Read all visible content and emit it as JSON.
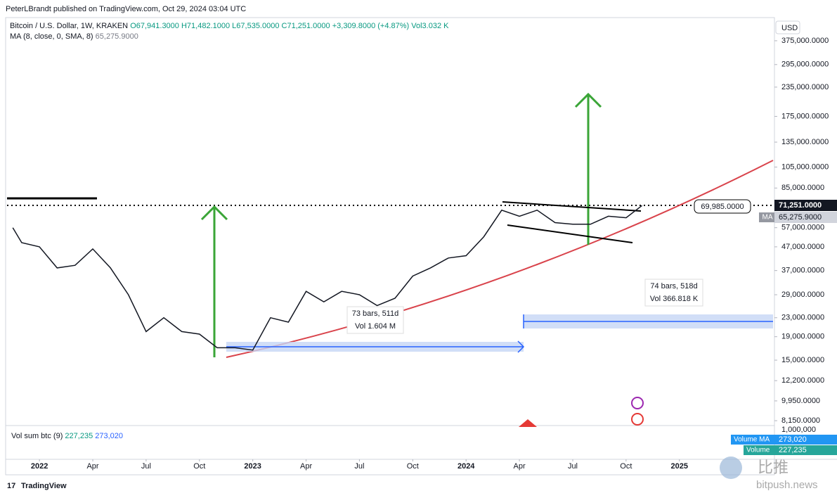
{
  "header": {
    "publisher": "PeterLBrandt published on TradingView.com, Oct 29, 2024 03:04 UTC"
  },
  "legend": {
    "symbol": "Bitcoin / U.S. Dollar, 1W, KRAKEN",
    "open": "O67,941.3000",
    "high": "H71,482.1000",
    "low": "L67,535.0000",
    "close": "C71,251.0000",
    "change": "+3,309.8000 (+4.87%)",
    "volume": "Vol3.032 K",
    "ma_label": "MA (8, close, 0, SMA, 8)",
    "ma_value": "65,275.9000"
  },
  "currency": "USD",
  "chart_data": {
    "type": "line",
    "log_scale": true,
    "grid": false,
    "color": "#131722",
    "series": [
      {
        "name": "Bitcoin / U.S. Dollar",
        "color": "#131722",
        "x": [
          2021.875,
          2021.917,
          2022.0,
          2022.083,
          2022.167,
          2022.25,
          2022.333,
          2022.417,
          2022.5,
          2022.583,
          2022.667,
          2022.75,
          2022.833,
          2022.917,
          2023.0,
          2023.083,
          2023.167,
          2023.25,
          2023.333,
          2023.417,
          2023.5,
          2023.583,
          2023.667,
          2023.75,
          2023.833,
          2023.917,
          2024.0,
          2024.083,
          2024.167,
          2024.25,
          2024.333,
          2024.417,
          2024.5,
          2024.583,
          2024.667,
          2024.75,
          2024.825
        ],
        "values": [
          57000,
          49000,
          47000,
          38000,
          39000,
          46000,
          38000,
          29000,
          20000,
          23000,
          20000,
          19500,
          17000,
          17000,
          16600,
          23000,
          22000,
          30000,
          27000,
          30000,
          29000,
          26000,
          28000,
          35000,
          38000,
          42000,
          43000,
          52000,
          68000,
          64000,
          68000,
          60000,
          59000,
          59000,
          64000,
          63000,
          71251
        ]
      }
    ],
    "xlim": [
      2021.848,
      2025.439
    ],
    "xticks": [
      2022,
      {
        "value": 2022.25,
        "label": "Apr"
      },
      {
        "value": 2022.5,
        "label": "Jul"
      },
      {
        "value": 2022.75,
        "label": "Oct"
      },
      2023,
      {
        "value": 2023.25,
        "label": "Apr"
      },
      {
        "value": 2023.5,
        "label": "Jul"
      },
      {
        "value": 2023.75,
        "label": "Oct"
      },
      2024,
      {
        "value": 2024.25,
        "label": "Apr"
      },
      {
        "value": 2024.5,
        "label": "Jul"
      },
      {
        "value": 2024.75,
        "label": "Oct"
      },
      2025
    ],
    "ylim": [
      7760,
      411000
    ],
    "yticks": [
      {
        "value": 375000,
        "label": "375,000.0000"
      },
      {
        "value": 295000,
        "label": "295,000.0000"
      },
      {
        "value": 235000,
        "label": "235,000.0000"
      },
      {
        "value": 175000,
        "label": "175,000.0000"
      },
      {
        "value": 135000,
        "label": "135,000.0000"
      },
      {
        "value": 105000,
        "label": "105,000.0000"
      },
      {
        "value": 85000,
        "label": "85,000.0000"
      },
      {
        "value": 57000,
        "label": "57,000.0000"
      },
      {
        "value": 47000,
        "label": "47,000.0000"
      },
      {
        "value": 37000,
        "label": "37,000.0000"
      },
      {
        "value": 29000,
        "label": "29,000.0000"
      },
      {
        "value": 23000,
        "label": "23,000.0000"
      },
      {
        "value": 19000,
        "label": "19,000.0000"
      },
      {
        "value": 15000,
        "label": "15,000.0000"
      },
      {
        "value": 12200,
        "label": "12,200.0000"
      },
      {
        "value": 9950,
        "label": "9,950.0000"
      },
      {
        "value": 8150,
        "label": "8,150.0000"
      }
    ]
  },
  "price_tags": {
    "last": "71,251.0000",
    "ma": "65,275.9000",
    "ma_badge": "MA",
    "level": "69,985.0000"
  },
  "annotations": [
    {
      "bars": "73 bars, 511d",
      "vol": "Vol 1.604 M"
    },
    {
      "bars": "74 bars, 518d",
      "vol": "Vol 366.818 K"
    }
  ],
  "volume_pane": {
    "label": "Vol sum btc (9)",
    "value": "227,235",
    "ma_value": "273,020",
    "axis_label": "1,000,000",
    "tag_ma_name": "Volume MA",
    "tag_ma_value": "273,020",
    "tag_name": "Volume",
    "tag_value": "227,235"
  },
  "footer": {
    "brand": "TradingView"
  },
  "watermark": {
    "cn": "比推",
    "site": "bitpush.news"
  }
}
